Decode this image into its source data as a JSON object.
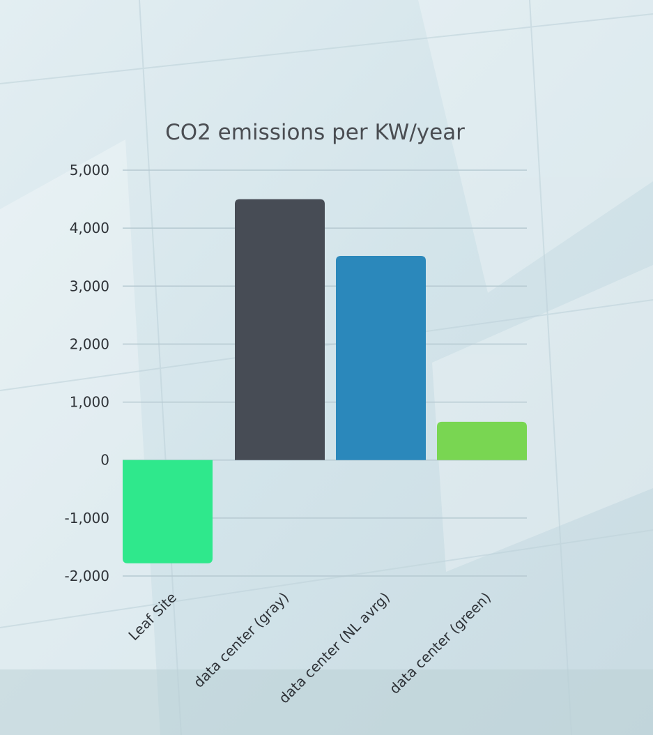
{
  "chart_data": {
    "type": "bar",
    "title": "CO2 emissions per KW/year",
    "xlabel": "",
    "ylabel": "",
    "categories": [
      "Leaf Site",
      "data center (gray)",
      "data center (NL avrg)",
      "data center (green)"
    ],
    "values": [
      -1780,
      4500,
      3520,
      660
    ],
    "colors": [
      "#2fe88c",
      "#474c55",
      "#2b88bb",
      "#79d652"
    ],
    "ylim": [
      -2000,
      5000
    ],
    "yticks": [
      5000,
      4000,
      3000,
      2000,
      1000,
      0,
      -1000,
      -2000
    ],
    "ytick_labels": [
      "5,000",
      "4,000",
      "3,000",
      "2,000",
      "1,000",
      "0",
      "-1,000",
      "-2,000"
    ],
    "grid": true,
    "legend": "none"
  }
}
